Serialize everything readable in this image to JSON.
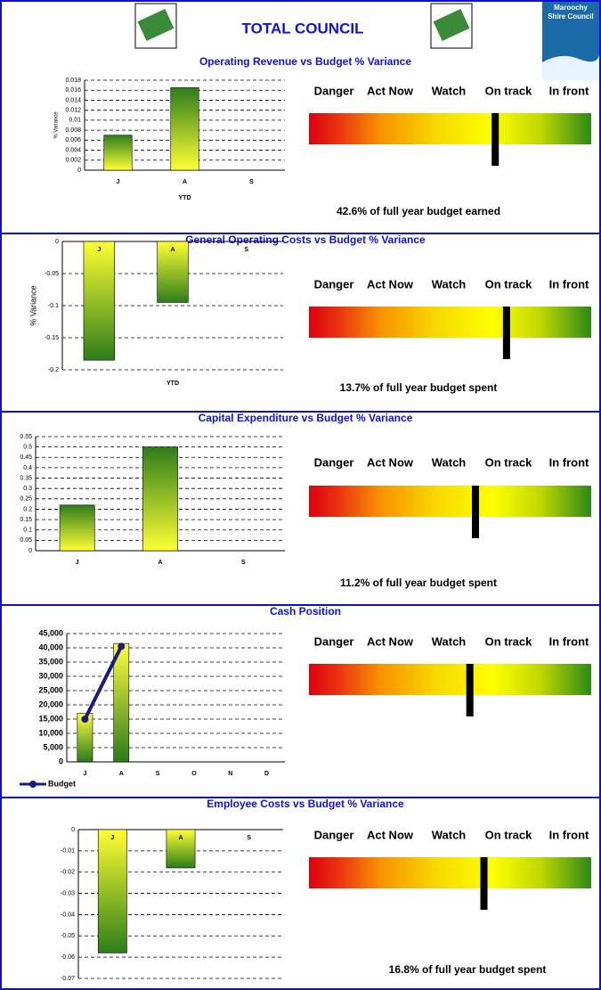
{
  "header": {
    "title": "TOTAL COUNCIL",
    "logo": [
      "Maroochy",
      "Shire Council"
    ]
  },
  "gauge_labels": [
    "Danger",
    "Act Now",
    "Watch",
    "On track",
    "In front"
  ],
  "chart_data": [
    {
      "type": "bar",
      "title": "Operating Revenue vs Budget % Variance",
      "categories": [
        "J",
        "A",
        "S"
      ],
      "values": [
        0.007,
        0.0165,
        null
      ],
      "color": [
        "#2e7d1a",
        "#ffff33"
      ],
      "ylim": [
        0,
        0.018
      ],
      "yticks": [
        0,
        0.002,
        0.004,
        0.006,
        0.008,
        0.01,
        0.012,
        0.014,
        0.016,
        0.018
      ],
      "grid": true,
      "y_label": "% Variance",
      "x_label": "YTD",
      "gauge_value": 0.66,
      "note": "42.6%  of full year budget earned"
    },
    {
      "type": "bar",
      "title": "General Operating Costs vs Budget % Variance",
      "categories": [
        "J",
        "A",
        "S"
      ],
      "values": [
        -0.185,
        -0.095,
        null
      ],
      "color": [
        "#ffff33",
        "#2e7d1a"
      ],
      "ylim": [
        -0.2,
        0
      ],
      "yticks": [
        -0.2,
        -0.15,
        -0.1,
        -0.05,
        0
      ],
      "grid": true,
      "y_label": "% Variance",
      "x_label": "YTD",
      "gauge_value": 0.7,
      "note": "13.7%  of full year budget spent"
    },
    {
      "type": "bar",
      "title": "Capital Expenditure vs Budget % Variance",
      "categories": [
        "J",
        "A",
        "S"
      ],
      "values": [
        0.22,
        0.5,
        null
      ],
      "color": [
        "#2e7d1a",
        "#ffff33"
      ],
      "ylim": [
        0,
        0.55
      ],
      "yticks": [
        0,
        0.05,
        0.1,
        0.15,
        0.2,
        0.25,
        0.3,
        0.35,
        0.4,
        0.45,
        0.5,
        0.55
      ],
      "grid": true,
      "gauge_value": 0.59,
      "note": "11.2%  of full year budget spent"
    },
    {
      "type": "bar",
      "title": "Cash Position",
      "categories": [
        "J",
        "A",
        "S",
        "O",
        "N",
        "D"
      ],
      "values": [
        17000,
        41500,
        null,
        null,
        null,
        null
      ],
      "color": [
        "#ffff40",
        "#2e7a1a"
      ],
      "ylim": [
        0,
        45000
      ],
      "yticks": [
        0,
        {
          "value": 5000,
          "label": "5,000"
        },
        {
          "value": 10000,
          "label": "10,000"
        },
        {
          "value": 15000,
          "label": "15,000"
        },
        {
          "value": 20000,
          "label": "20,000"
        },
        {
          "value": 25000,
          "label": "25,000"
        },
        {
          "value": 30000,
          "label": "30,000"
        },
        {
          "value": 35000,
          "label": "35,000"
        },
        {
          "value": 40000,
          "label": "40,000"
        },
        {
          "value": 45000,
          "label": "45,000"
        }
      ],
      "grid": true,
      "series": [
        {
          "name": "Budget",
          "color": "#1a1a80",
          "values": [
            15000,
            40500,
            null,
            null,
            null,
            null
          ]
        }
      ],
      "legend": "bottom-left",
      "gauge_value": 0.57
    },
    {
      "type": "bar",
      "title": "Employee Costs vs Budget % Variance",
      "categories": [
        "J",
        "A",
        "S"
      ],
      "values": [
        -0.058,
        -0.018,
        null
      ],
      "color": [
        "#ffff33",
        "#2e7d1a"
      ],
      "ylim": [
        -0.07,
        0
      ],
      "yticks": [
        -0.07,
        -0.06,
        -0.05,
        -0.04,
        -0.03,
        -0.02,
        -0.01,
        0
      ],
      "grid": true,
      "gauge_value": 0.62,
      "note": "16.8%  of full year budget spent"
    }
  ]
}
